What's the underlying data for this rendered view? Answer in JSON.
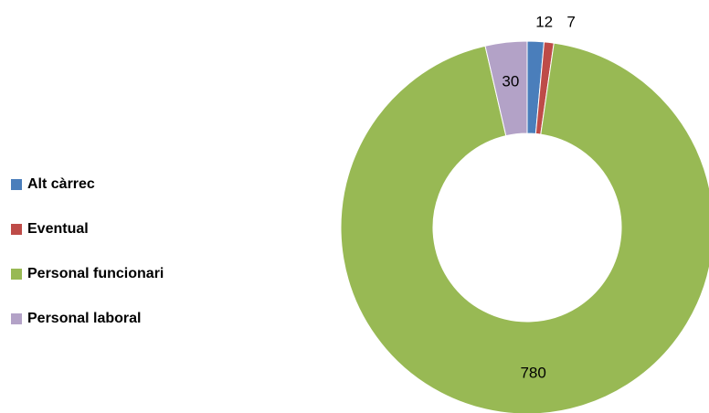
{
  "chart_data": {
    "type": "donut",
    "categories": [
      "Alt càrrec",
      "Eventual",
      "Personal funcionari",
      "Personal laboral"
    ],
    "values": [
      12,
      7,
      780,
      30
    ],
    "colors": [
      "#4a7ebb",
      "#be4b48",
      "#98b954",
      "#b3a2c7"
    ],
    "legend": "left"
  }
}
